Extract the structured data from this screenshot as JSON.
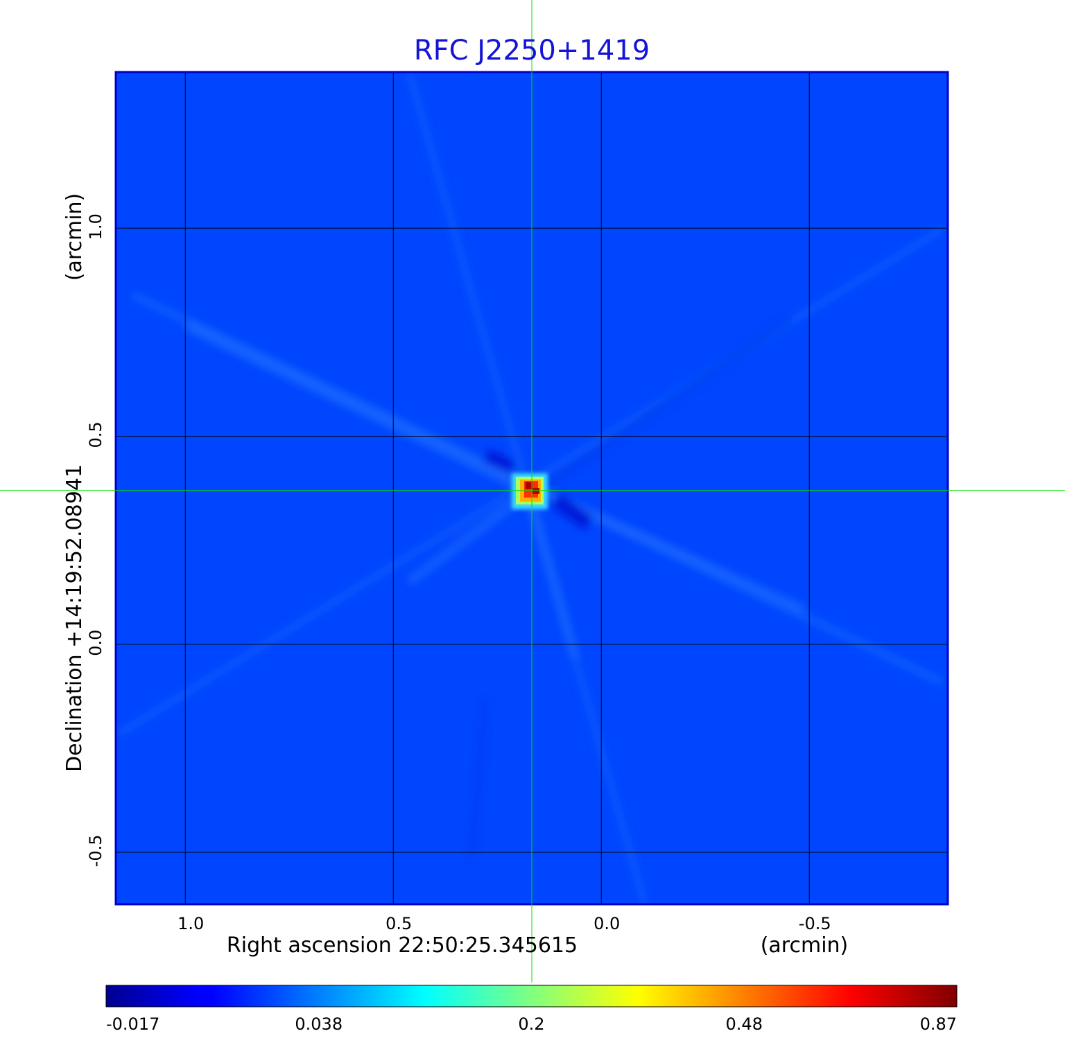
{
  "chart_data": {
    "type": "heatmap",
    "title": "RFC J2250+1419",
    "xlabel": "Right ascension  22:50:25.345615",
    "x_unit": "(arcmin)",
    "ylabel": "Declination  +14:19:52.08941",
    "y_unit": "(arcmin)",
    "x_ticks": [
      "1.0",
      "0.5",
      "0.0",
      "-0.5"
    ],
    "x_tick_values": [
      1.0,
      0.5,
      0.0,
      -0.5
    ],
    "y_ticks": [
      "1.0",
      "0.5",
      "0.0",
      "-0.5"
    ],
    "y_tick_values": [
      1.0,
      0.5,
      0.0,
      -0.5
    ],
    "xlim": [
      1.167,
      -0.833
    ],
    "ylim": [
      -0.625,
      1.375
    ],
    "x_reversed": true,
    "grid": true,
    "colormap": "jet",
    "colorbar": {
      "placement": "bottom",
      "ticks": [
        "-0.017",
        "0.038",
        "0.2",
        "0.48",
        "0.87"
      ],
      "tick_values": [
        -0.017,
        0.038,
        0.2,
        0.48,
        0.87
      ]
    },
    "source_peak": {
      "x": 0.17,
      "y": 0.37,
      "value": 0.87
    },
    "crosshair": {
      "x": 0.167,
      "y": 0.37,
      "color": "#00e000"
    },
    "background_level": -0.005
  }
}
